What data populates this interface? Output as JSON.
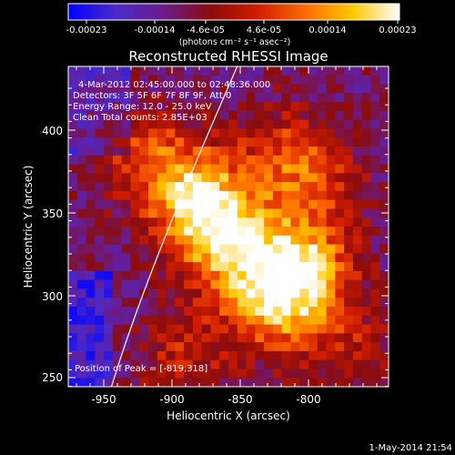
{
  "colorbar": {
    "tick_labels": [
      "-0.00023",
      "-0.00014",
      "-4.6e-05",
      "4.6e-05",
      "0.00014",
      "0.00023"
    ],
    "units_label": "(photons cm⁻² s⁻¹ asec⁻²)",
    "colors": [
      "#0000ff",
      "#4b2ac8",
      "#6a1c8c",
      "#8a0c0c",
      "#d11c00",
      "#ff6a00",
      "#ffc800",
      "#ffffff"
    ]
  },
  "image": {
    "title": "Reconstructed RHESSI Image",
    "info_lines": [
      "4-Mar-2012 02:45:00.000 to 02:48:36.000",
      "Detectors: 3F 5F 6F 7F 8F 9F, Att 0",
      "Energy Range: 12.0 - 25.0 keV",
      "Clean      Total counts: 2.85E+03"
    ],
    "peak_label": "Position of Peak = [-819,318]",
    "xlabel": "Heliocentric X (arcsec)",
    "ylabel": "Heliocentric Y (arcsec)",
    "x_ticks": [
      "-950",
      "-900",
      "-850",
      "-800"
    ],
    "y_ticks": [
      "250",
      "300",
      "350",
      "400"
    ],
    "timestamp": "1-May-2014 21:54"
  }
}
